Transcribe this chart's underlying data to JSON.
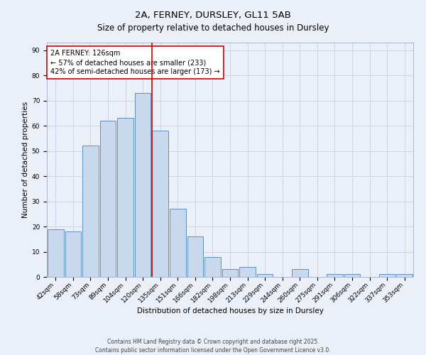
{
  "title1": "2A, FERNEY, DURSLEY, GL11 5AB",
  "title2": "Size of property relative to detached houses in Dursley",
  "xlabel": "Distribution of detached houses by size in Dursley",
  "ylabel": "Number of detached properties",
  "bar_labels": [
    "42sqm",
    "58sqm",
    "73sqm",
    "89sqm",
    "104sqm",
    "120sqm",
    "135sqm",
    "151sqm",
    "166sqm",
    "182sqm",
    "198sqm",
    "213sqm",
    "229sqm",
    "244sqm",
    "260sqm",
    "275sqm",
    "291sqm",
    "306sqm",
    "322sqm",
    "337sqm",
    "353sqm"
  ],
  "bar_values": [
    19,
    18,
    52,
    62,
    63,
    73,
    58,
    27,
    16,
    8,
    3,
    4,
    1,
    0,
    3,
    0,
    1,
    1,
    0,
    1,
    1
  ],
  "bar_color": "#c9d9ed",
  "bar_edgecolor": "#6090c0",
  "bar_linewidth": 0.7,
  "vline_index": 6,
  "vline_color": "#cc0000",
  "annotation_line1": "2A FERNEY: 126sqm",
  "annotation_line2": "← 57% of detached houses are smaller (233)",
  "annotation_line3": "42% of semi-detached houses are larger (173) →",
  "annotation_box_edgecolor": "#cc0000",
  "annotation_box_facecolor": "#ffffff",
  "ylim": [
    0,
    93
  ],
  "yticks": [
    0,
    10,
    20,
    30,
    40,
    50,
    60,
    70,
    80,
    90
  ],
  "grid_color": "#ccd5e5",
  "bg_color": "#eaeff8",
  "footer1": "Contains HM Land Registry data © Crown copyright and database right 2025.",
  "footer2": "Contains public sector information licensed under the Open Government Licence v3.0.",
  "title1_fontsize": 9.5,
  "title2_fontsize": 8.5,
  "axis_label_fontsize": 7.5,
  "tick_fontsize": 6.5,
  "annotation_fontsize": 7,
  "footer_fontsize": 5.5
}
